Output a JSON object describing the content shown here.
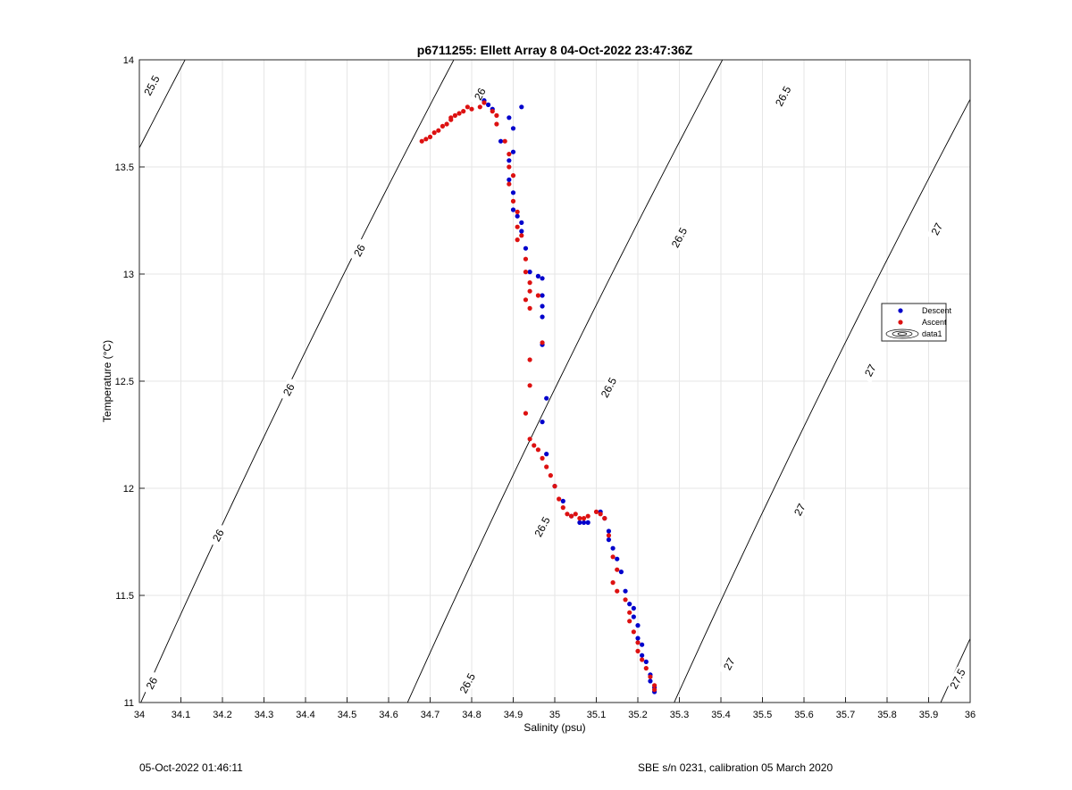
{
  "chart_data": {
    "type": "scatter",
    "title": "p6711255: Ellett Array 8 04-Oct-2022 23:47:36Z",
    "xlabel": "Salinity (psu)",
    "ylabel": "Temperature (°C)",
    "xlim": [
      34,
      36
    ],
    "ylim": [
      11,
      14
    ],
    "xticks": [
      "34",
      "34.1",
      "34.2",
      "34.3",
      "34.4",
      "34.5",
      "34.6",
      "34.7",
      "34.8",
      "34.9",
      "35",
      "35.1",
      "35.2",
      "35.3",
      "35.4",
      "35.5",
      "35.6",
      "35.7",
      "35.8",
      "35.9",
      "36"
    ],
    "yticks": [
      "11",
      "11.5",
      "12",
      "12.5",
      "13",
      "13.5",
      "14"
    ],
    "grid": true,
    "legend_position": "right",
    "series": [
      {
        "name": "Descent",
        "color": "#0000cc",
        "points": [
          [
            34.83,
            13.81
          ],
          [
            34.84,
            13.79
          ],
          [
            34.85,
            13.77
          ],
          [
            34.92,
            13.78
          ],
          [
            34.89,
            13.73
          ],
          [
            34.9,
            13.68
          ],
          [
            34.87,
            13.62
          ],
          [
            34.9,
            13.57
          ],
          [
            34.89,
            13.53
          ],
          [
            34.89,
            13.44
          ],
          [
            34.9,
            13.38
          ],
          [
            34.9,
            13.3
          ],
          [
            34.91,
            13.27
          ],
          [
            34.92,
            13.24
          ],
          [
            34.92,
            13.2
          ],
          [
            34.93,
            13.12
          ],
          [
            34.94,
            13.01
          ],
          [
            34.96,
            12.99
          ],
          [
            34.97,
            12.98
          ],
          [
            34.97,
            12.9
          ],
          [
            34.97,
            12.85
          ],
          [
            34.97,
            12.8
          ],
          [
            34.97,
            12.67
          ],
          [
            34.98,
            12.42
          ],
          [
            34.97,
            12.31
          ],
          [
            34.98,
            12.16
          ],
          [
            35.0,
            12.01
          ],
          [
            35.02,
            11.94
          ],
          [
            35.04,
            11.87
          ],
          [
            35.06,
            11.84
          ],
          [
            35.07,
            11.84
          ],
          [
            35.08,
            11.84
          ],
          [
            35.11,
            11.89
          ],
          [
            35.12,
            11.86
          ],
          [
            35.13,
            11.8
          ],
          [
            35.13,
            11.76
          ],
          [
            35.14,
            11.72
          ],
          [
            35.15,
            11.67
          ],
          [
            35.16,
            11.61
          ],
          [
            35.17,
            11.52
          ],
          [
            35.18,
            11.46
          ],
          [
            35.19,
            11.44
          ],
          [
            35.19,
            11.4
          ],
          [
            35.2,
            11.36
          ],
          [
            35.2,
            11.3
          ],
          [
            35.21,
            11.27
          ],
          [
            35.21,
            11.22
          ],
          [
            35.22,
            11.19
          ],
          [
            35.23,
            11.13
          ],
          [
            35.23,
            11.1
          ],
          [
            35.24,
            11.07
          ],
          [
            35.24,
            11.05
          ]
        ]
      },
      {
        "name": "Ascent",
        "color": "#dd1111",
        "points": [
          [
            34.68,
            13.62
          ],
          [
            34.69,
            13.63
          ],
          [
            34.7,
            13.64
          ],
          [
            34.71,
            13.66
          ],
          [
            34.72,
            13.67
          ],
          [
            34.73,
            13.69
          ],
          [
            34.74,
            13.7
          ],
          [
            34.75,
            13.72
          ],
          [
            34.75,
            13.73
          ],
          [
            34.76,
            13.74
          ],
          [
            34.77,
            13.75
          ],
          [
            34.78,
            13.76
          ],
          [
            34.79,
            13.78
          ],
          [
            34.8,
            13.77
          ],
          [
            34.82,
            13.78
          ],
          [
            34.83,
            13.8
          ],
          [
            34.85,
            13.76
          ],
          [
            34.86,
            13.74
          ],
          [
            34.86,
            13.7
          ],
          [
            34.88,
            13.62
          ],
          [
            34.89,
            13.56
          ],
          [
            34.89,
            13.5
          ],
          [
            34.9,
            13.46
          ],
          [
            34.89,
            13.42
          ],
          [
            34.9,
            13.34
          ],
          [
            34.91,
            13.29
          ],
          [
            34.91,
            13.22
          ],
          [
            34.92,
            13.18
          ],
          [
            34.91,
            13.16
          ],
          [
            34.93,
            13.07
          ],
          [
            34.93,
            13.01
          ],
          [
            34.94,
            12.96
          ],
          [
            34.94,
            12.92
          ],
          [
            34.93,
            12.88
          ],
          [
            34.94,
            12.84
          ],
          [
            34.96,
            12.9
          ],
          [
            34.97,
            12.68
          ],
          [
            34.94,
            12.6
          ],
          [
            34.94,
            12.48
          ],
          [
            34.93,
            12.35
          ],
          [
            34.94,
            12.23
          ],
          [
            34.95,
            12.2
          ],
          [
            34.96,
            12.18
          ],
          [
            34.97,
            12.14
          ],
          [
            34.98,
            12.1
          ],
          [
            34.99,
            12.06
          ],
          [
            35.0,
            12.01
          ],
          [
            35.01,
            11.95
          ],
          [
            35.02,
            11.91
          ],
          [
            35.03,
            11.88
          ],
          [
            35.04,
            11.87
          ],
          [
            35.05,
            11.88
          ],
          [
            35.06,
            11.86
          ],
          [
            35.07,
            11.86
          ],
          [
            35.08,
            11.87
          ],
          [
            35.1,
            11.89
          ],
          [
            35.11,
            11.88
          ],
          [
            35.12,
            11.86
          ],
          [
            35.13,
            11.78
          ],
          [
            35.14,
            11.68
          ],
          [
            35.15,
            11.62
          ],
          [
            35.14,
            11.56
          ],
          [
            35.15,
            11.52
          ],
          [
            35.17,
            11.48
          ],
          [
            35.18,
            11.42
          ],
          [
            35.18,
            11.38
          ],
          [
            35.19,
            11.33
          ],
          [
            35.2,
            11.28
          ],
          [
            35.2,
            11.24
          ],
          [
            35.21,
            11.2
          ],
          [
            35.22,
            11.16
          ],
          [
            35.23,
            11.12
          ],
          [
            35.24,
            11.08
          ],
          [
            35.24,
            11.06
          ]
        ]
      },
      {
        "name": "data1",
        "type": "contour",
        "color": "#000000",
        "levels": [
          25.5,
          26,
          26.5,
          27,
          27.5
        ],
        "contour_labels": [
          {
            "text": "25.5",
            "at": [
              34.03,
              13.88
            ]
          },
          {
            "text": "26",
            "at": [
              34.82,
              13.84
            ]
          },
          {
            "text": "26",
            "at": [
              34.53,
              13.11
            ]
          },
          {
            "text": "26",
            "at": [
              34.36,
              12.46
            ]
          },
          {
            "text": "26",
            "at": [
              34.19,
              11.78
            ]
          },
          {
            "text": "26",
            "at": [
              34.03,
              11.09
            ]
          },
          {
            "text": "26.5",
            "at": [
              35.55,
              13.83
            ]
          },
          {
            "text": "26.5",
            "at": [
              35.3,
              13.17
            ]
          },
          {
            "text": "26.5",
            "at": [
              35.13,
              12.47
            ]
          },
          {
            "text": "26.5",
            "at": [
              34.97,
              11.82
            ]
          },
          {
            "text": "26.5",
            "at": [
              34.79,
              11.09
            ]
          },
          {
            "text": "27",
            "at": [
              35.92,
              13.21
            ]
          },
          {
            "text": "27",
            "at": [
              35.76,
              12.55
            ]
          },
          {
            "text": "27",
            "at": [
              35.59,
              11.9
            ]
          },
          {
            "text": "27",
            "at": [
              35.42,
              11.18
            ]
          },
          {
            "text": "27.5",
            "at": [
              35.97,
              11.11
            ]
          }
        ]
      }
    ]
  },
  "footer": {
    "timestamp": "05-Oct-2022 01:46:11",
    "instrument": "SBE s/n 0231, calibration 05 March 2020"
  }
}
